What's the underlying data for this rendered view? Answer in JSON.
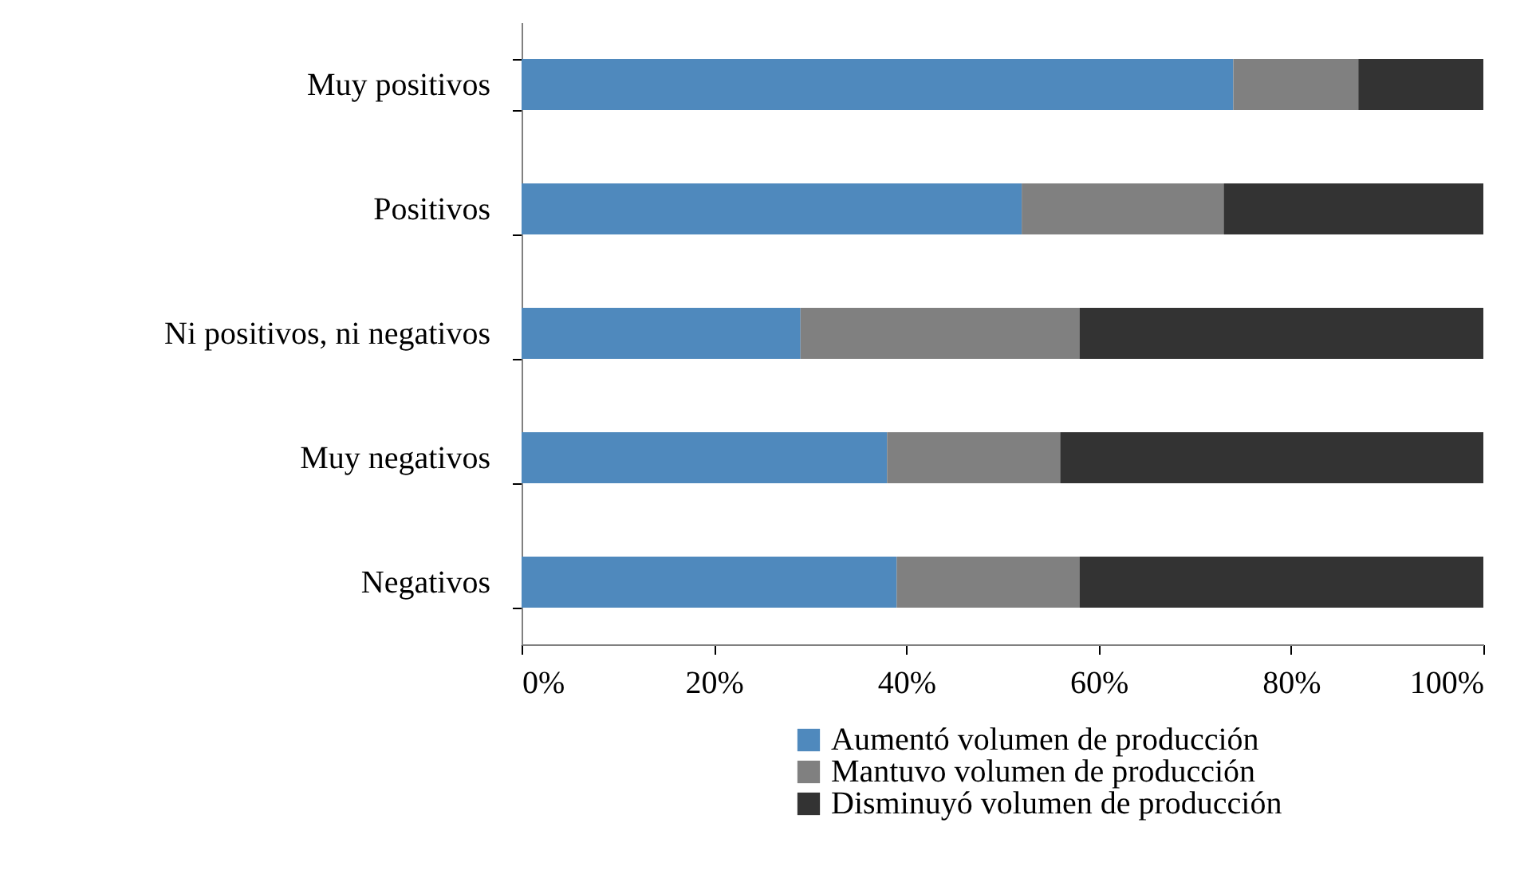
{
  "chart_data": {
    "type": "bar",
    "orientation": "horizontal",
    "stacked": true,
    "categories": [
      "Muy positivos",
      "Positivos",
      "Ni positivos, ni negativos",
      "Muy negativos",
      "Negativos"
    ],
    "series": [
      {
        "name": "Aumentó volumen de producción",
        "color": "#4f89bd",
        "values": [
          74,
          52,
          29,
          38,
          39
        ]
      },
      {
        "name": "Mantuvo volumen de producción",
        "color": "#808080",
        "values": [
          13,
          21,
          29,
          18,
          19
        ]
      },
      {
        "name": "Disminuyó volumen de producción",
        "color": "#333333",
        "values": [
          13,
          27,
          42,
          44,
          42
        ]
      }
    ],
    "xlim": [
      0,
      100
    ],
    "xticks": [
      {
        "value": 0,
        "label": "0%"
      },
      {
        "value": 20,
        "label": "20%"
      },
      {
        "value": 40,
        "label": "40%"
      },
      {
        "value": 60,
        "label": "60%"
      },
      {
        "value": 80,
        "label": "80%"
      },
      {
        "value": 100,
        "label": "100%"
      }
    ],
    "grid": false,
    "legend": "bottom right"
  }
}
